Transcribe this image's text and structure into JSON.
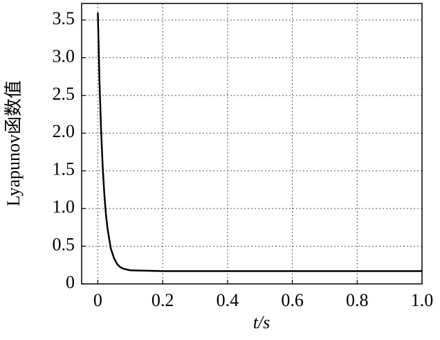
{
  "chart_data": {
    "type": "line",
    "xlabel": "t/s",
    "ylabel": "Lyapunov函数值",
    "x": [
      0,
      0.005,
      0.01,
      0.015,
      0.02,
      0.025,
      0.03,
      0.04,
      0.05,
      0.06,
      0.07,
      0.08,
      0.1,
      0.2,
      0.4,
      0.6,
      0.8,
      1.0
    ],
    "series": [
      {
        "color": "#000000",
        "values": [
          3.6,
          2.7,
          2.04,
          1.55,
          1.19,
          0.92,
          0.73,
          0.47,
          0.34,
          0.26,
          0.22,
          0.2,
          0.18,
          0.17,
          0.17,
          0.17,
          0.17,
          0.17
        ]
      }
    ],
    "xlim": [
      -0.05,
      1.0
    ],
    "ylim": [
      0,
      3.72
    ],
    "xticks": [
      0,
      0.2,
      0.4,
      0.6,
      0.8,
      {
        "value": 1,
        "label": "1.0"
      }
    ],
    "yticks": [
      0,
      0.5,
      {
        "value": 1,
        "label": "1.0"
      },
      1.5,
      {
        "value": 2,
        "label": "2.0"
      },
      2.5,
      {
        "value": 3,
        "label": "3.0"
      },
      3.5
    ],
    "grid": true
  }
}
